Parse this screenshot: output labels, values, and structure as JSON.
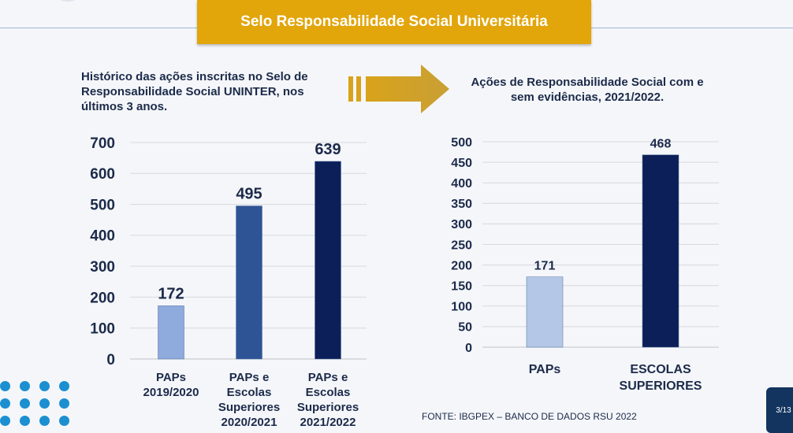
{
  "banner": {
    "title": "Selo Responsabilidade Social Universitária"
  },
  "captions": {
    "left": "Histórico das ações inscritas no Selo de Responsabilidade Social UNINTER, nos últimos 3 anos.",
    "right": "Ações de Responsabilidade Social com e sem evidências, 2021/2022."
  },
  "source": "FONTE: IBGPEX – BANCO DE DADOS  RSU 2022",
  "page_indicator": "3/13",
  "colors": {
    "banner": "#e2a50a",
    "navy": "#0c1f58",
    "mid_blue": "#2f5496",
    "light_blue": "#8faadc",
    "pale_blue": "#b4c7e7"
  },
  "chart_data": [
    {
      "type": "bar",
      "title": "",
      "categories": [
        [
          "PAPs",
          "2019/2020"
        ],
        [
          "PAPs e",
          "Escolas",
          "Superiores",
          "2020/2021"
        ],
        [
          "PAPs e",
          "Escolas",
          "Superiores",
          "2021/2022"
        ]
      ],
      "values": [
        172,
        495,
        639
      ],
      "colors": [
        "#8faadc",
        "#2f5496",
        "#0c1f58"
      ],
      "ylim": [
        0,
        700
      ],
      "yticks": [
        0,
        100,
        200,
        300,
        400,
        500,
        600,
        700
      ],
      "grid": true
    },
    {
      "type": "bar",
      "title": "",
      "categories": [
        [
          "PAPs"
        ],
        [
          "ESCOLAS",
          "SUPERIORES"
        ]
      ],
      "values": [
        171,
        468
      ],
      "colors": [
        "#b4c7e7",
        "#0c1f58"
      ],
      "ylim": [
        0,
        500
      ],
      "yticks": [
        0,
        50,
        100,
        150,
        200,
        250,
        300,
        350,
        400,
        450,
        500
      ],
      "grid": true
    }
  ]
}
